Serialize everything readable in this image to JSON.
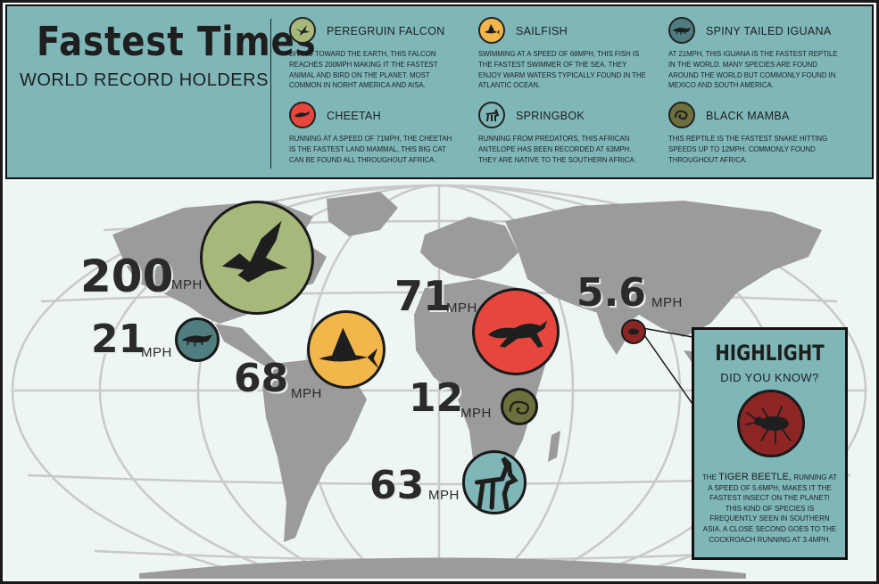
{
  "header": {
    "title": "Fastest Times",
    "subtitle": "WORLD RECORD HOLDERS"
  },
  "animals": [
    {
      "name": "PEREGRUIN FALCON",
      "icon": "falcon-icon",
      "color": "#a7b97a",
      "description": "DIVING TOWARD THE EARTH, THIS FALCON REACHES 200MPH MAKING IT THE FASTEST ANIMAL AND BIRD ON THE PLANET. MOST COMMON IN NORHT AMERICA AND AISA."
    },
    {
      "name": "SAILFISH",
      "icon": "sailfish-icon",
      "color": "#f2b64a",
      "description": "SWIMMING AT A SPEED OF 68MPH, THIS FISH IS THE FASTEST SWIMMER OF THE SEA. THEY ENJOY WARM WATERS TYPICALLY FOUND IN THE ATLANTIC OCEAN."
    },
    {
      "name": "SPINY TAILED IGUANA",
      "icon": "iguana-icon",
      "color": "#4f7d80",
      "description": "AT 21MPH, THIS IGUANA IS THE FASTEST REPTILE IN THE WORLD. MANY SPECIES ARE FOUND AROUND THE WORLD BUT COMMONLY FOUND IN MEXICO AND SOUTH AMERICA."
    },
    {
      "name": "CHEETAH",
      "icon": "cheetah-icon",
      "color": "#e7463d",
      "description": "RUNNING AT A SPEED OF 71MPH, THE CHEETAH IS THE FASTEST LAND MAMMAL. THIS BIG CAT CAN BE FOUND ALL THROUGHOUT AFRICA."
    },
    {
      "name": "SPRINGBOK",
      "icon": "springbok-icon",
      "color": "#7fb7b9",
      "description": "RUNNING FROM PREDATORS, THIS AFRICAN ANTELOPE HAS BEEN RECORDED AT 63MPH. THEY ARE NATIVE TO THE SOUTHERN AFRICA."
    },
    {
      "name": "BLACK MAMBA",
      "icon": "mamba-icon",
      "color": "#6d6f3d",
      "description": "THIS REPTILE IS THE FASTEST SNAKE HITTING SPEEDS UP TO 12MPH. COMMONLY FOUND THROUGHOUT AFRICA."
    }
  ],
  "speeds": {
    "falcon": "200",
    "iguana": "21",
    "sailfish": "68",
    "cheetah": "71",
    "mamba": "12",
    "springbok": "63",
    "beetle": "5.6",
    "unit": "MPH"
  },
  "highlight": {
    "title": "HIGHLIGHT",
    "subtitle": "DID YOU KNOW?",
    "lead": "THE",
    "emphasis": "TIGER BEETLE,",
    "text": "RUNNING AT A SPEED OF 5.6MPH, MAKES IT THE FASTEST INSECT ON THE PLANET! THIS KIND OF SPECIES IS FREQUENTLY SEEN IN SOUTHERN ASIA. A CLOSE SECOND GOES TO THE COCKROACH RUNNING AT 3.4MPH.",
    "icon": "tiger-beetle-icon",
    "color": "#8e2525"
  }
}
